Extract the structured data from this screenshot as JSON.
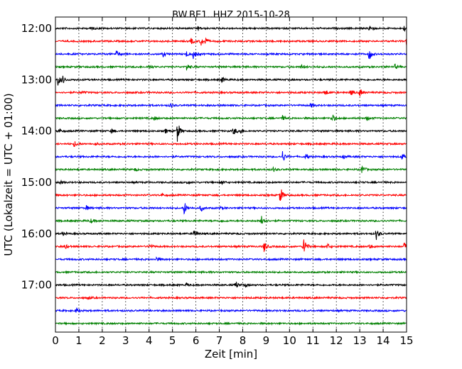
{
  "chart_data": {
    "type": "line",
    "title": "BW.BE1..HHZ 2015-10-28",
    "xlabel": "Zeit  [min]",
    "ylabel": "UTC (Lokalzeit = UTC + 01:00)",
    "xlim": [
      0,
      15
    ],
    "x_ticks": [
      0,
      1,
      2,
      3,
      4,
      5,
      6,
      7,
      8,
      9,
      10,
      11,
      12,
      13,
      14,
      15
    ],
    "y_tick_labels": [
      "12:00",
      "13:00",
      "14:00",
      "15:00",
      "16:00",
      "17:00"
    ],
    "grid": true,
    "trace_colors": [
      "#000000",
      "#ff0000",
      "#0000ff",
      "#008000"
    ],
    "traces": [
      {
        "start": "12:00",
        "events": [
          [
            1.5,
            0.3
          ],
          [
            6.1,
            0.3
          ],
          [
            13.4,
            0.6
          ],
          [
            14.9,
            0.4
          ]
        ]
      },
      {
        "start": "12:15",
        "events": [
          [
            5.8,
            0.4
          ],
          [
            6.2,
            0.7
          ],
          [
            6.4,
            0.4
          ],
          [
            15.0,
            0.5
          ]
        ]
      },
      {
        "start": "12:30",
        "events": [
          [
            2.6,
            0.5
          ],
          [
            4.6,
            0.3
          ],
          [
            5.6,
            0.4
          ],
          [
            5.9,
            0.7
          ],
          [
            13.4,
            0.9
          ]
        ]
      },
      {
        "start": "12:45",
        "events": [
          [
            4.0,
            0.3
          ],
          [
            5.6,
            0.5
          ],
          [
            10.5,
            0.3
          ],
          [
            14.5,
            0.3
          ]
        ]
      },
      {
        "start": "13:00",
        "events": [
          [
            0.1,
            0.8
          ],
          [
            0.3,
            0.5
          ],
          [
            7.1,
            0.4
          ]
        ]
      },
      {
        "start": "13:15",
        "events": [
          [
            1.1,
            0.2
          ],
          [
            11.5,
            0.5
          ],
          [
            12.6,
            0.4
          ],
          [
            13.0,
            0.6
          ]
        ]
      },
      {
        "start": "13:30",
        "events": [
          [
            4.9,
            0.3
          ],
          [
            10.9,
            0.3
          ]
        ]
      },
      {
        "start": "13:45",
        "events": [
          [
            4.2,
            0.3
          ],
          [
            9.7,
            0.3
          ],
          [
            11.8,
            0.7
          ],
          [
            13.3,
            0.3
          ]
        ]
      },
      {
        "start": "14:00",
        "events": [
          [
            0.1,
            0.5
          ],
          [
            2.4,
            0.3
          ],
          [
            4.7,
            0.3
          ],
          [
            5.2,
            1.5
          ],
          [
            7.6,
            0.6
          ],
          [
            7.9,
            0.4
          ]
        ]
      },
      {
        "start": "14:15",
        "events": [
          [
            0.8,
            0.4
          ],
          [
            1.7,
            0.2
          ]
        ]
      },
      {
        "start": "14:30",
        "events": [
          [
            9.7,
            0.8
          ],
          [
            10.7,
            0.4
          ],
          [
            12.3,
            0.3
          ],
          [
            14.8,
            0.4
          ]
        ]
      },
      {
        "start": "14:45",
        "events": [
          [
            3.4,
            0.2
          ],
          [
            9.3,
            0.3
          ],
          [
            13.1,
            0.6
          ]
        ]
      },
      {
        "start": "15:00",
        "events": [
          [
            0.2,
            0.2
          ],
          [
            5.6,
            0.2
          ],
          [
            7.1,
            0.3
          ]
        ]
      },
      {
        "start": "15:15",
        "events": [
          [
            4.5,
            0.3
          ],
          [
            9.6,
            1.2
          ]
        ]
      },
      {
        "start": "15:30",
        "events": [
          [
            1.3,
            0.4
          ],
          [
            5.5,
            0.9
          ],
          [
            6.2,
            0.5
          ],
          [
            7.0,
            0.2
          ]
        ]
      },
      {
        "start": "15:45",
        "events": [
          [
            1.5,
            0.3
          ],
          [
            7.1,
            0.2
          ],
          [
            8.8,
            1.0
          ]
        ]
      },
      {
        "start": "16:00",
        "events": [
          [
            0.3,
            0.2
          ],
          [
            5.9,
            0.7
          ],
          [
            13.7,
            0.8
          ]
        ]
      },
      {
        "start": "16:15",
        "events": [
          [
            0.4,
            0.3
          ],
          [
            4.0,
            0.3
          ],
          [
            8.9,
            0.8
          ],
          [
            10.6,
            1.6
          ],
          [
            11.6,
            0.4
          ],
          [
            13.4,
            0.3
          ],
          [
            14.9,
            0.5
          ]
        ]
      },
      {
        "start": "16:30",
        "events": [
          [
            4.3,
            0.3
          ]
        ]
      },
      {
        "start": "16:45",
        "events": []
      },
      {
        "start": "17:00",
        "events": [
          [
            5.6,
            0.2
          ],
          [
            7.7,
            0.5
          ],
          [
            8.1,
            0.3
          ]
        ]
      },
      {
        "start": "17:15",
        "events": [
          [
            1.4,
            0.2
          ]
        ]
      },
      {
        "start": "17:30",
        "events": [
          [
            0.9,
            0.4
          ]
        ]
      },
      {
        "start": "17:45",
        "events": []
      }
    ]
  }
}
